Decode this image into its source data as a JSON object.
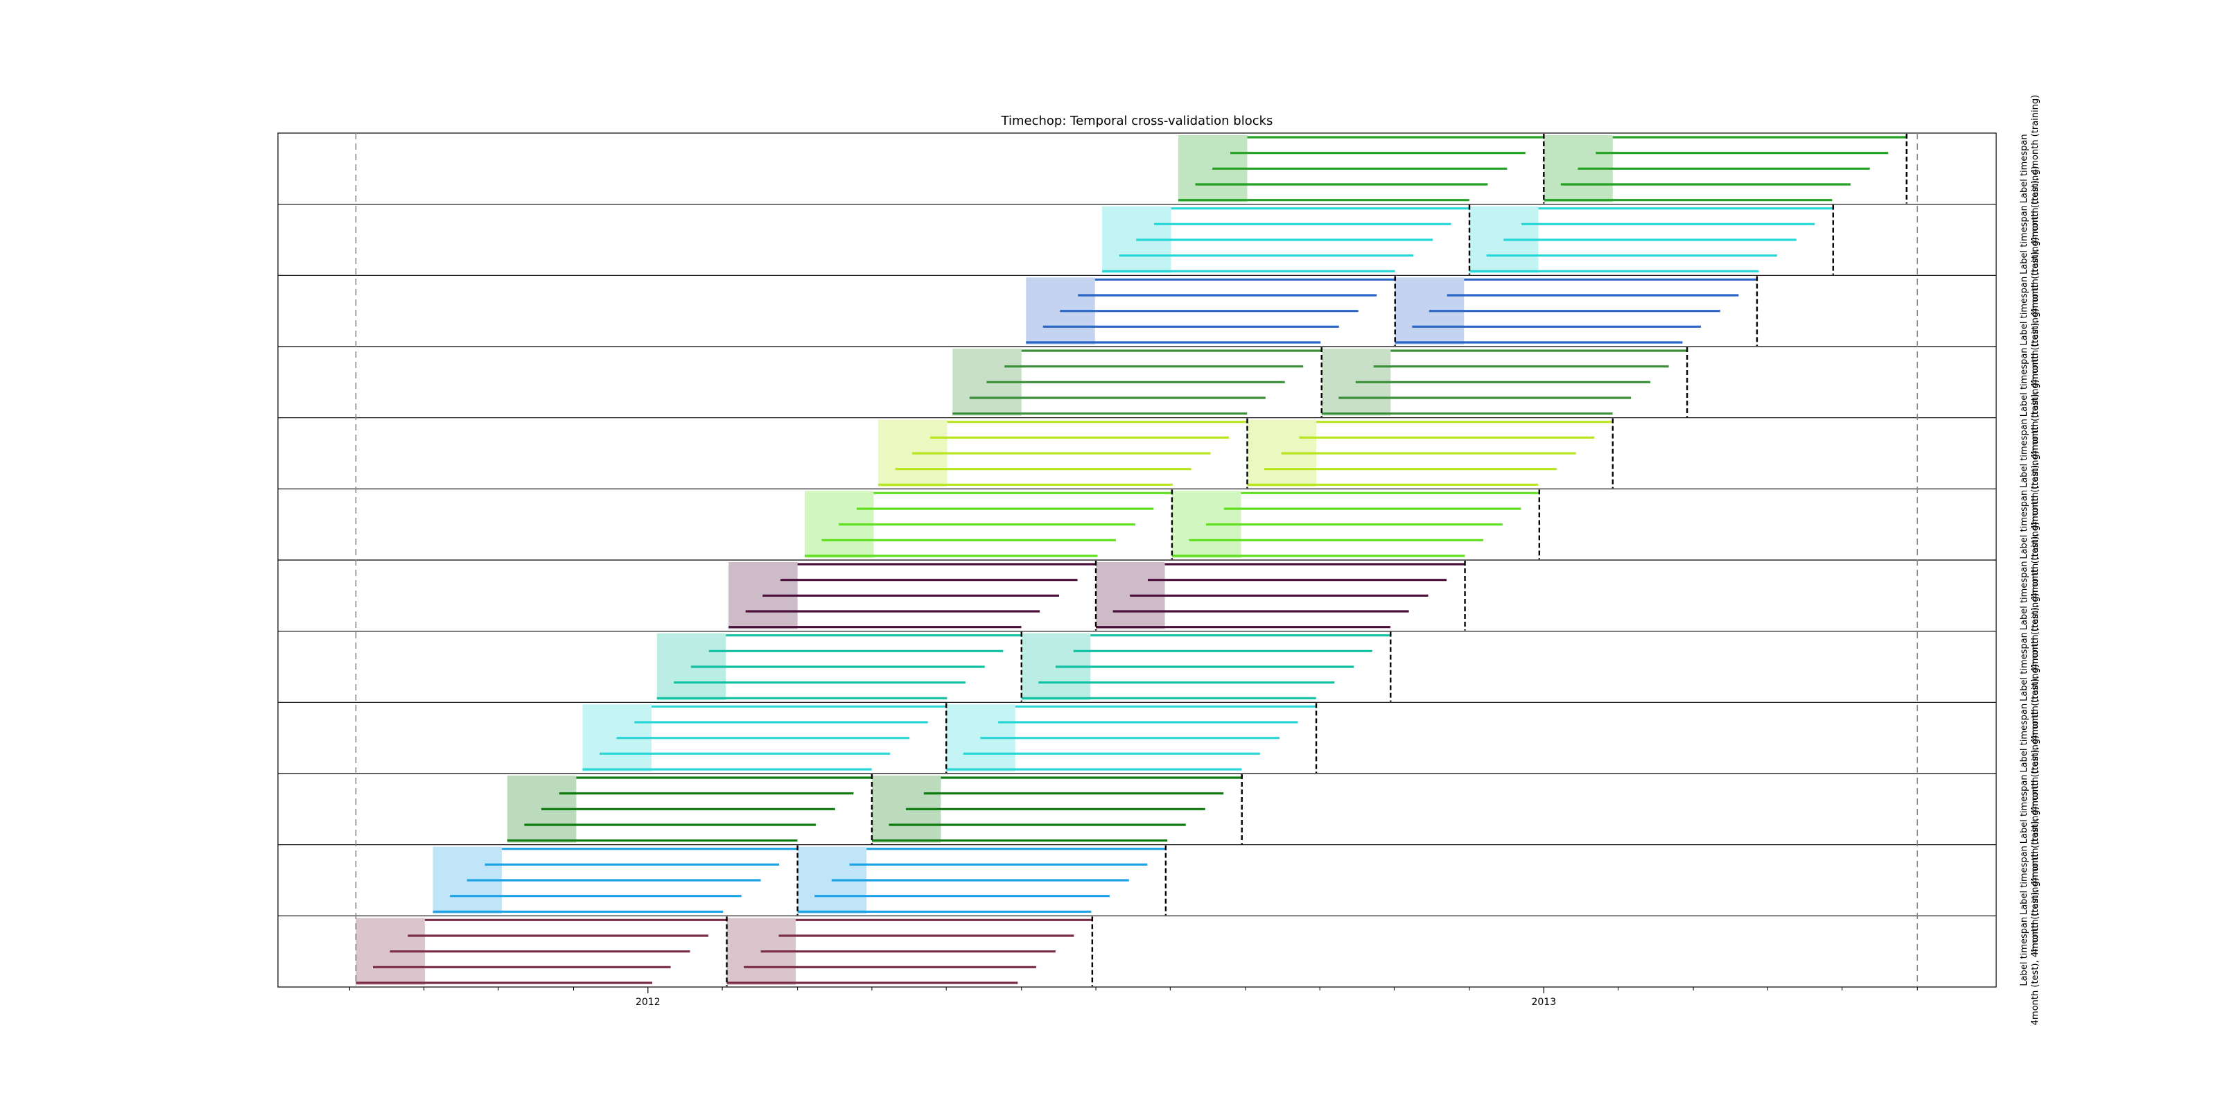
{
  "chart_data": {
    "type": "timeline",
    "title": "Timechop: Temporal cross-validation blocks",
    "xlabel": "",
    "ylabel": "",
    "x_unit": "years (decimal)",
    "xlim": [
      2011.587,
      2013.505
    ],
    "x_ticks": [
      {
        "value": 2012.0,
        "label": "2012"
      },
      {
        "value": 2013.0,
        "label": "2013"
      }
    ],
    "minor_tick_values": [
      2011.667,
      2011.75,
      2011.833,
      2011.917,
      2012.083,
      2012.167,
      2012.25,
      2012.333,
      2012.417,
      2012.5,
      2012.583,
      2012.667,
      2012.75,
      2012.833,
      2012.917,
      2013.083,
      2013.167,
      2013.25,
      2013.333,
      2013.417
    ],
    "reference_lines": [
      2011.674,
      2013.417
    ],
    "label_window_years": 0.077,
    "training_offsets_years": [
      0.0,
      0.019,
      0.038,
      0.058,
      0.077
    ],
    "block_label": "Label timespan: 4month (test), 4month (training)",
    "row_side_labels": [
      "Label timespan",
      "4month (test), 4month (training)"
    ],
    "blocks": [
      {
        "train_start": 2011.674,
        "split": 2012.088,
        "test_end": 2012.496,
        "color": "#7b2d48"
      },
      {
        "train_start": 2011.76,
        "split": 2012.167,
        "test_end": 2012.578,
        "color": "#1ea2e6"
      },
      {
        "train_start": 2011.843,
        "split": 2012.25,
        "test_end": 2012.663,
        "color": "#0d7a0d"
      },
      {
        "train_start": 2011.927,
        "split": 2012.333,
        "test_end": 2012.746,
        "color": "#2bd6d6"
      },
      {
        "train_start": 2012.01,
        "split": 2012.417,
        "test_end": 2012.829,
        "color": "#10c0a0"
      },
      {
        "train_start": 2012.09,
        "split": 2012.5,
        "test_end": 2012.912,
        "color": "#4a0f3a"
      },
      {
        "train_start": 2012.175,
        "split": 2012.585,
        "test_end": 2012.995,
        "color": "#5ee01e"
      },
      {
        "train_start": 2012.257,
        "split": 2012.669,
        "test_end": 2013.077,
        "color": "#b8e61e"
      },
      {
        "train_start": 2012.34,
        "split": 2012.752,
        "test_end": 2013.16,
        "color": "#3b8f3b"
      },
      {
        "train_start": 2012.422,
        "split": 2012.834,
        "test_end": 2013.238,
        "color": "#2a66c8"
      },
      {
        "train_start": 2012.507,
        "split": 2012.917,
        "test_end": 2013.323,
        "color": "#26d6d6"
      },
      {
        "train_start": 2012.592,
        "split": 2013.0,
        "test_end": 2013.405,
        "color": "#22a022"
      }
    ]
  }
}
